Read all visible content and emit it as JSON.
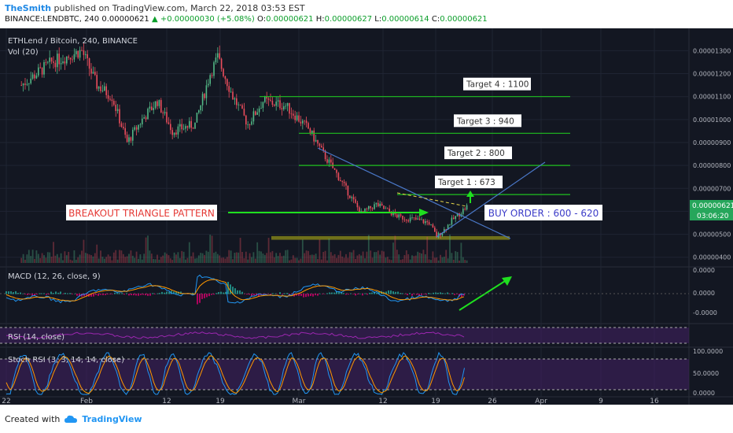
{
  "header": {
    "user": "TheSmith",
    "published": "published on TradingView.com, March 22, 2018 03:53 EST",
    "symbol": "BINANCE:LENDBTC, 240",
    "last": "0.00000621",
    "change": "▲ +0.00000030 (+5.08%)",
    "o_label": "O:",
    "o": "0.00000621",
    "h_label": "H:",
    "h": "0.00000627",
    "l_label": "L:",
    "l": "0.00000614",
    "c_label": "C:",
    "c": "0.00000621"
  },
  "legend": {
    "main": "ETHLend / Bitcoin, 240, BINANCE",
    "vol": "Vol (20)",
    "macd": "MACD (12, 26, close, 9)",
    "rsi": "RSI (14, close)",
    "stoch": "Stoch RSI (3, 3, 14, 14, close)"
  },
  "annotations": {
    "pattern": "BREAKOUT TRIANGLE PATTERN",
    "buy": "BUY ORDER : 600 - 620",
    "targets": [
      {
        "label": "Target 1  : 673",
        "price": 6.73e-06
      },
      {
        "label": "Target 2  : 800",
        "price": 8e-06
      },
      {
        "label": "Target 3  : 940",
        "price": 9.4e-06
      },
      {
        "label": "Target 4  : 1100",
        "price": 1.1e-05
      }
    ],
    "buy_zone": [
      4.76e-06,
      4.92e-06
    ]
  },
  "price_badge": {
    "value": "0.00000621",
    "countdown": "03:06:20"
  },
  "footer": {
    "created": "Created with",
    "brand": "TradingView"
  },
  "colors": {
    "background": "#131722",
    "up_candle": "#53b987",
    "down_candle": "#eb4d5c",
    "target_line": "#1fc01f",
    "triangle": "#4a78c8",
    "zone": "#7a7a1a",
    "macd_line": "#2196f3",
    "signal_line": "#ff9800",
    "rsi_fill": "#3f1f5f",
    "stoch_k": "#2196f3",
    "stoch_d": "#ff9800"
  },
  "chart_data": [
    {
      "type": "candlestick",
      "title": "ETHLend / Bitcoin, 240, BINANCE",
      "ylim": [
        3.75e-06,
        1.37e-05
      ],
      "y_ticks": [
        "0.00001300",
        "0.00001200",
        "0.00001100",
        "0.00001000",
        "0.00000900",
        "0.00000800",
        "0.00000700",
        "0.00000600",
        "0.00000500",
        "0.00000400"
      ],
      "x_ticks": [
        "22",
        "Feb",
        "12",
        "19",
        "Mar",
        "12",
        "19",
        "26",
        "Apr",
        "9",
        "16"
      ],
      "series": [
        {
          "name": "close",
          "x": [
            "Jan 22",
            "Jan 26",
            "Jan 30",
            "Feb 1",
            "Feb 3",
            "Feb 5",
            "Feb 7",
            "Feb 9",
            "Feb 11",
            "Feb 14",
            "Feb 16",
            "Feb 17",
            "Feb 19",
            "Feb 21",
            "Feb 23",
            "Feb 26",
            "Mar 1",
            "Mar 3",
            "Mar 5",
            "Mar 8",
            "Mar 10",
            "Mar 13",
            "Mar 15",
            "Mar 17",
            "Mar 18",
            "Mar 19",
            "Mar 20",
            "Mar 21",
            "Mar 22"
          ],
          "values": [
            1.15e-05,
            1.25e-05,
            1.3e-05,
            1.15e-05,
            1.1e-05,
            9e-06,
            1e-05,
            1.08e-05,
            9.5e-06,
            9.8e-06,
            1.2e-05,
            1.27e-05,
            1.1e-05,
            9.8e-06,
            1.08e-05,
            1.06e-05,
            9.6e-06,
            8.5e-06,
            7.5e-06,
            5.9e-06,
            6.3e-06,
            5.75e-06,
            5.65e-06,
            5.5e-06,
            4.9e-06,
            5.2e-06,
            5.6e-06,
            5.9e-06,
            6.21e-06
          ]
        }
      ]
    },
    {
      "type": "line",
      "title": "MACD (12, 26, close, 9)",
      "y_ticks": [
        "0.0000",
        "0.0000",
        "-0.0000"
      ]
    },
    {
      "type": "line",
      "title": "RSI (14, close)"
    },
    {
      "type": "line",
      "title": "Stoch RSI (3, 3, 14, 14, close)",
      "y_ticks": [
        "100.0000",
        "50.0000",
        "0.0000"
      ]
    }
  ]
}
